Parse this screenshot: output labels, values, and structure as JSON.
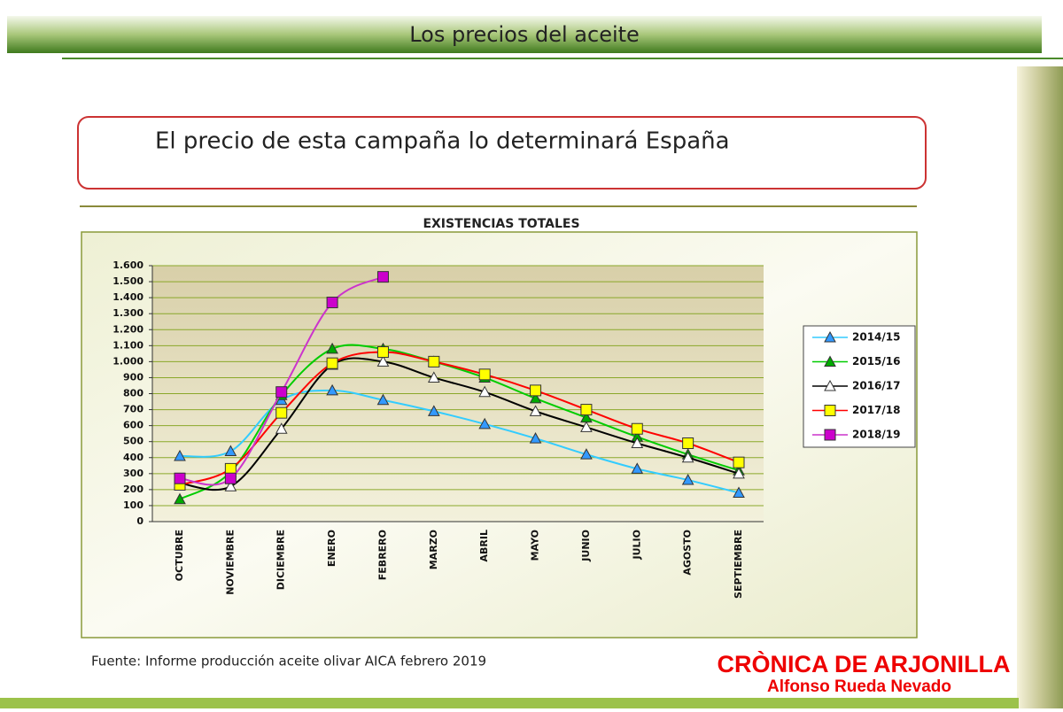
{
  "header": {
    "title": "Los precios del aceite"
  },
  "callout": {
    "text": "El precio de esta campaña lo determinará España"
  },
  "chart_data": {
    "type": "line",
    "title": "EXISTENCIAS TOTALES",
    "categories": [
      "OCTUBRE",
      "NOVIEMBRE",
      "DICIEMBRE",
      "ENERO",
      "FEBRERO",
      "MARZO",
      "ABRIL",
      "MAYO",
      "JUNIO",
      "JULIO",
      "AGOSTO",
      "SEPTIEMBRE"
    ],
    "series": [
      {
        "name": "2014/15",
        "color": "#33ccff",
        "marker": "triangle",
        "marker_fill": "#3399ff",
        "values": [
          410,
          440,
          760,
          820,
          760,
          690,
          610,
          520,
          420,
          330,
          260,
          180
        ]
      },
      {
        "name": "2015/16",
        "color": "#00cc00",
        "marker": "triangle",
        "marker_fill": "#00aa00",
        "values": [
          140,
          310,
          790,
          1080,
          1080,
          1000,
          900,
          770,
          650,
          530,
          420,
          320
        ]
      },
      {
        "name": "2016/17",
        "color": "#000000",
        "marker": "triangle",
        "marker_fill": "#ffffff",
        "values": [
          240,
          220,
          580,
          980,
          1000,
          900,
          810,
          690,
          590,
          490,
          400,
          300
        ]
      },
      {
        "name": "2017/18",
        "color": "#ff0000",
        "marker": "square",
        "marker_fill": "#ffff00",
        "values": [
          230,
          330,
          680,
          990,
          1060,
          1000,
          920,
          820,
          700,
          580,
          490,
          370
        ]
      },
      {
        "name": "2018/19",
        "color": "#cc33cc",
        "marker": "square",
        "marker_fill": "#cc00cc",
        "values": [
          270,
          270,
          810,
          1370,
          1530,
          null,
          null,
          null,
          null,
          null,
          null,
          null
        ]
      }
    ],
    "ylim": [
      0,
      1600
    ],
    "yticks": [
      0,
      100,
      200,
      300,
      400,
      500,
      600,
      700,
      800,
      900,
      {
        "value": 1000,
        "label": "1.000"
      },
      {
        "value": 1100,
        "label": "1.100"
      },
      {
        "value": 1200,
        "label": "1.200"
      },
      {
        "value": 1300,
        "label": "1.300"
      },
      {
        "value": 1400,
        "label": "1.400"
      },
      {
        "value": 1500,
        "label": "1.500"
      },
      {
        "value": 1600,
        "label": "1.600"
      }
    ],
    "grid": true,
    "legend": "right"
  },
  "footer": {
    "source": "Fuente: Informe producción aceite olivar AICA febrero 2019",
    "brand": "CRÒNICA DE ARJONILLA",
    "author": "Alfonso Rueda Nevado"
  }
}
